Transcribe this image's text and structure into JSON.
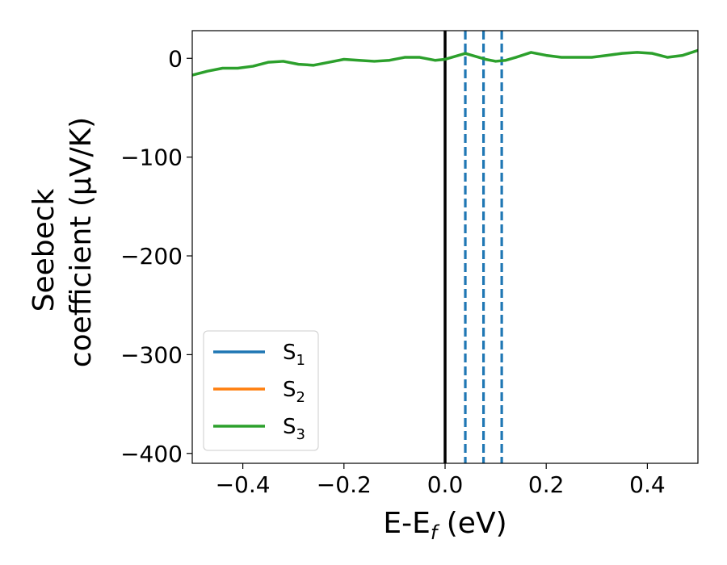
{
  "chart_data": {
    "type": "line",
    "xlabel": "E-E",
    "xlabel_sub": "f",
    "xlabel_unit": " (eV)",
    "ylabel_line1": "Seebeck",
    "ylabel_line2": "coefficient  (μV/K)",
    "xlim": [
      -0.5,
      0.5
    ],
    "ylim": [
      -410,
      28
    ],
    "xticks": [
      -0.4,
      -0.2,
      0.0,
      0.2,
      0.4
    ],
    "xtick_labels": [
      "−0.4",
      "−0.2",
      "0.0",
      "0.2",
      "0.4"
    ],
    "yticks": [
      0,
      -100,
      -200,
      -300,
      -400
    ],
    "ytick_labels": [
      "0",
      "−100",
      "−200",
      "−300",
      "−400"
    ],
    "grid": false,
    "legend_position": "lower-left",
    "legend": [
      {
        "label": "S",
        "sub": "1",
        "color": "#1f77b4"
      },
      {
        "label": "S",
        "sub": "2",
        "color": "#ff7f0e"
      },
      {
        "label": "S",
        "sub": "3",
        "color": "#2ca02c"
      }
    ],
    "series": [
      {
        "color": "#2ca02c",
        "x": [
          -0.5,
          -0.47,
          -0.44,
          -0.41,
          -0.38,
          -0.35,
          -0.32,
          -0.29,
          -0.26,
          -0.23,
          -0.2,
          -0.17,
          -0.14,
          -0.11,
          -0.08,
          -0.05,
          -0.02,
          0.0,
          0.02,
          0.04,
          0.06,
          0.08,
          0.1,
          0.12,
          0.14,
          0.17,
          0.2,
          0.23,
          0.26,
          0.29,
          0.32,
          0.35,
          0.38,
          0.41,
          0.44,
          0.47,
          0.5
        ],
        "y": [
          -17,
          -13,
          -10,
          -10,
          -8,
          -4,
          -3,
          -6,
          -7,
          -4,
          -1,
          -2,
          -3,
          -2,
          1,
          1,
          -2,
          -1,
          2,
          5,
          2,
          -1,
          -3,
          -2,
          1,
          6,
          3,
          1,
          1,
          1,
          3,
          5,
          6,
          5,
          1,
          3,
          8
        ]
      }
    ],
    "vlines": [
      {
        "x": 0.0,
        "color": "#000000",
        "style": "solid"
      },
      {
        "x": 0.04,
        "color": "#1f77b4",
        "style": "dashed"
      },
      {
        "x": 0.076,
        "color": "#1f77b4",
        "style": "dashed"
      },
      {
        "x": 0.112,
        "color": "#1f77b4",
        "style": "dashed"
      }
    ]
  }
}
